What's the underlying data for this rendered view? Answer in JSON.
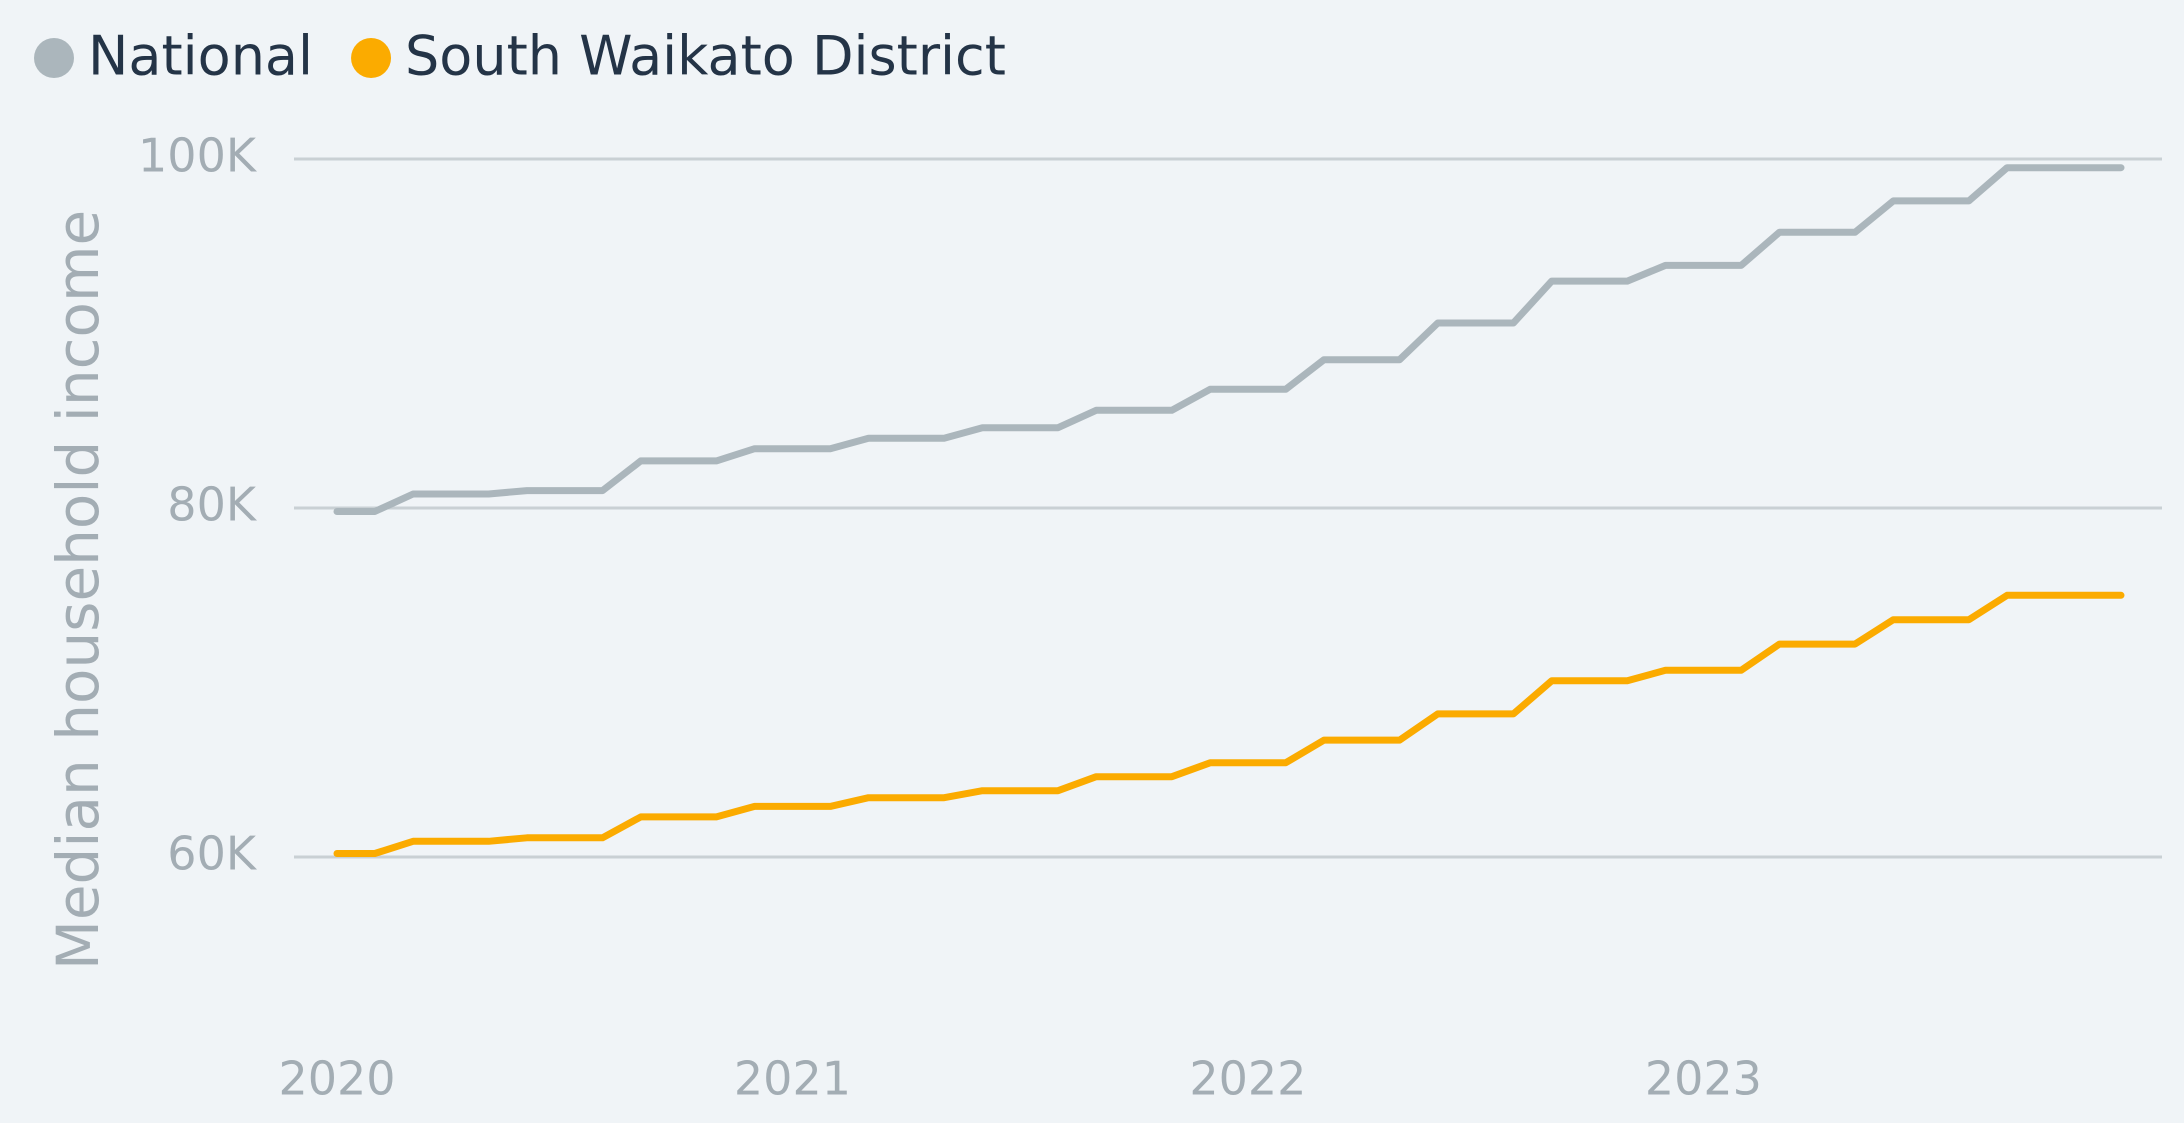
{
  "chart_data": {
    "type": "line",
    "ylabel": "Median household income",
    "x": [
      2020,
      2020.083,
      2020.167,
      2020.25,
      2020.333,
      2020.417,
      2020.5,
      2020.583,
      2020.667,
      2020.75,
      2020.833,
      2020.917,
      2021,
      2021.083,
      2021.167,
      2021.25,
      2021.333,
      2021.417,
      2021.5,
      2021.583,
      2021.667,
      2021.75,
      2021.833,
      2021.917,
      2022,
      2022.083,
      2022.167,
      2022.25,
      2022.333,
      2022.417,
      2022.5,
      2022.583,
      2022.667,
      2022.75,
      2022.833,
      2022.917,
      2023,
      2023.083,
      2023.167,
      2023.25,
      2023.333,
      2023.417,
      2023.5,
      2023.583,
      2023.667,
      2023.75,
      2023.833,
      2023.917
    ],
    "series": [
      {
        "name": "National",
        "color": "#abb6bc",
        "values": [
          79800,
          79800,
          80800,
          80800,
          80800,
          81000,
          81000,
          81000,
          82700,
          82700,
          82700,
          83400,
          83400,
          83400,
          84000,
          84000,
          84000,
          84600,
          84600,
          84600,
          85600,
          85600,
          85600,
          86800,
          86800,
          86800,
          88500,
          88500,
          88500,
          90600,
          90600,
          90600,
          93000,
          93000,
          93000,
          93900,
          93900,
          93900,
          95800,
          95800,
          95800,
          97600,
          97600,
          97600,
          99500,
          99500,
          99500,
          99500
        ]
      },
      {
        "name": "South Waikato District",
        "color": "#fbab00",
        "values": [
          60200,
          60200,
          60900,
          60900,
          60900,
          61100,
          61100,
          61100,
          62300,
          62300,
          62300,
          62900,
          62900,
          62900,
          63400,
          63400,
          63400,
          63800,
          63800,
          63800,
          64600,
          64600,
          64600,
          65400,
          65400,
          65400,
          66700,
          66700,
          66700,
          68200,
          68200,
          68200,
          70100,
          70100,
          70100,
          70700,
          70700,
          70700,
          72200,
          72200,
          72200,
          73600,
          73600,
          73600,
          75000,
          75000,
          75000,
          75000
        ]
      }
    ],
    "xlim": [
      2020,
      2023.917
    ],
    "xticks": [
      2020,
      2021,
      2022,
      2023
    ],
    "ylim": [
      60000,
      100000
    ],
    "yticks": [
      {
        "value": 60000,
        "label": "60K"
      },
      {
        "value": 80000,
        "label": "80K"
      },
      {
        "value": 100000,
        "label": "100K"
      }
    ],
    "grid": true,
    "legend": "top-left"
  }
}
